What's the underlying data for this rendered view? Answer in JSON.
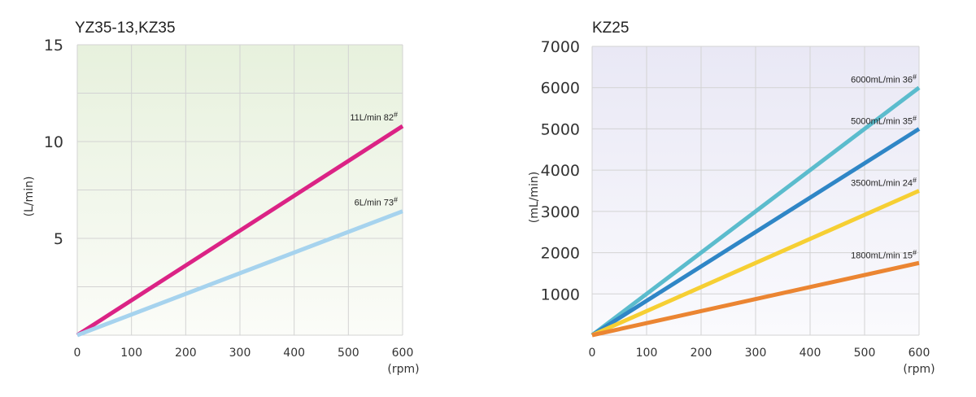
{
  "chart_data": [
    {
      "type": "line",
      "title": "YZ35-13,KZ35",
      "ylabel": "(L/min)",
      "xunit": "(rpm)",
      "xlim": [
        0,
        600
      ],
      "ylim": [
        0,
        15
      ],
      "xticks": [
        0,
        100,
        200,
        300,
        400,
        500,
        600
      ],
      "yticks": [
        5,
        10,
        15
      ],
      "grid": true,
      "background": [
        "#e7f1dd",
        "#fbfcf8"
      ],
      "series": [
        {
          "label": "11L/min 82#",
          "text": "11L/min  82",
          "sup": "#",
          "color": "#db2385",
          "x": [
            0,
            600
          ],
          "y": [
            0,
            10.8
          ]
        },
        {
          "label": "6L/min 73#",
          "text": "6L/min  73",
          "sup": "#",
          "color": "#a6d3ee",
          "x": [
            0,
            600
          ],
          "y": [
            0,
            6.4
          ]
        }
      ]
    },
    {
      "type": "line",
      "title": "KZ25",
      "ylabel": "(mL/min)",
      "xunit": "(rpm)",
      "xlim": [
        0,
        600
      ],
      "ylim": [
        0,
        7000
      ],
      "xticks": [
        0,
        100,
        200,
        300,
        400,
        500,
        600
      ],
      "yticks": [
        1000,
        2000,
        3000,
        4000,
        5000,
        6000,
        7000
      ],
      "grid": true,
      "background": [
        "#e9e8f5",
        "#fafafd"
      ],
      "series": [
        {
          "label": "6000mL/min 36#",
          "text": "6000mL/min 36",
          "sup": "#",
          "color": "#5bbccd",
          "x": [
            0,
            600
          ],
          "y": [
            0,
            6000
          ]
        },
        {
          "label": "5000mL/min 35#",
          "text": "5000mL/min 35",
          "sup": "#",
          "color": "#2f86c6",
          "x": [
            0,
            600
          ],
          "y": [
            0,
            5000
          ]
        },
        {
          "label": "3500mL/min 24#",
          "text": "3500mL/min 24",
          "sup": "#",
          "color": "#f6cf33",
          "x": [
            0,
            600
          ],
          "y": [
            0,
            3500
          ]
        },
        {
          "label": "1800mL/min 15#",
          "text": "1800mL/min 15",
          "sup": "#",
          "color": "#eb8532",
          "x": [
            0,
            600
          ],
          "y": [
            0,
            1750
          ]
        }
      ]
    }
  ]
}
